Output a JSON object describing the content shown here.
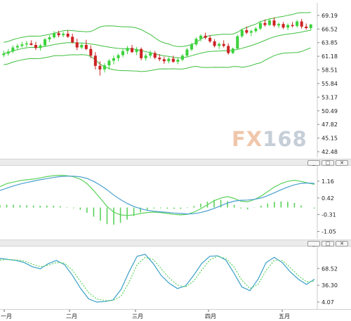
{
  "watermark": {
    "brand_a": "FX",
    "brand_b": "168"
  },
  "window_buttons": {
    "minimize": "_",
    "restore": "□",
    "close": "✕"
  },
  "colors": {
    "up": "#3cd23c",
    "down": "#cc2222",
    "band": "#3fbf3f",
    "macd_line": "#4a9fd0",
    "signal_line": "#5ad25a",
    "hist": "#5ad25a",
    "k_line": "#3a9fc8",
    "d_line": "#5ad25a"
  },
  "x_axis": {
    "labels": [
      "一月",
      "二月",
      "三月",
      "四月",
      "五月"
    ]
  },
  "chart_data": [
    {
      "type": "candlestick",
      "yticks": [
        "69.19",
        "66.52",
        "63.85",
        "61.18",
        "58.51",
        "55.84",
        "53.17",
        "50.49",
        "47.82",
        "45.15",
        "42.48"
      ],
      "ylim": [
        42.48,
        70.0
      ],
      "ohlc": [
        [
          61.4,
          62.3,
          61.0,
          61.7
        ],
        [
          61.7,
          62.6,
          61.3,
          62.1
        ],
        [
          62.1,
          63.3,
          61.8,
          62.9
        ],
        [
          62.9,
          63.6,
          62.4,
          63.2
        ],
        [
          63.2,
          64.0,
          62.9,
          63.5
        ],
        [
          63.5,
          64.2,
          63.0,
          63.7
        ],
        [
          63.7,
          64.3,
          63.3,
          63.4
        ],
        [
          63.4,
          64.0,
          62.4,
          62.8
        ],
        [
          62.8,
          63.6,
          62.3,
          63.3
        ],
        [
          63.3,
          64.8,
          63.0,
          64.5
        ],
        [
          64.5,
          65.3,
          64.0,
          64.9
        ],
        [
          64.9,
          66.1,
          64.6,
          65.7
        ],
        [
          65.7,
          66.2,
          64.9,
          65.3
        ],
        [
          65.3,
          66.0,
          64.9,
          65.6
        ],
        [
          65.6,
          66.2,
          64.8,
          65.0
        ],
        [
          65.0,
          65.6,
          63.7,
          63.9
        ],
        [
          63.9,
          64.6,
          62.4,
          62.9
        ],
        [
          62.9,
          63.7,
          62.6,
          63.4
        ],
        [
          63.4,
          64.4,
          62.4,
          62.6
        ],
        [
          62.6,
          63.3,
          60.8,
          61.3
        ],
        [
          61.3,
          62.0,
          58.6,
          59.3
        ],
        [
          59.3,
          60.2,
          57.4,
          58.6
        ],
        [
          58.6,
          59.8,
          58.0,
          59.4
        ],
        [
          59.4,
          60.6,
          58.6,
          60.3
        ],
        [
          60.3,
          61.3,
          59.6,
          60.8
        ],
        [
          60.8,
          61.7,
          60.2,
          61.4
        ],
        [
          61.4,
          62.6,
          61.0,
          62.2
        ],
        [
          62.2,
          63.2,
          61.6,
          62.8
        ],
        [
          62.8,
          63.4,
          61.8,
          62.0
        ],
        [
          62.0,
          63.0,
          61.4,
          62.6
        ],
        [
          62.6,
          62.9,
          60.4,
          60.8
        ],
        [
          60.8,
          61.7,
          60.3,
          61.3
        ],
        [
          61.3,
          62.3,
          60.8,
          61.8
        ],
        [
          61.8,
          62.2,
          60.6,
          60.9
        ],
        [
          60.9,
          61.6,
          60.2,
          60.6
        ],
        [
          60.6,
          61.1,
          59.7,
          60.2
        ],
        [
          60.2,
          61.0,
          59.8,
          60.7
        ],
        [
          60.7,
          61.3,
          59.9,
          60.1
        ],
        [
          60.1,
          60.9,
          59.6,
          60.5
        ],
        [
          60.5,
          61.6,
          60.2,
          61.3
        ],
        [
          61.3,
          62.8,
          61.0,
          62.5
        ],
        [
          62.5,
          63.8,
          62.2,
          63.5
        ],
        [
          63.5,
          64.9,
          63.2,
          64.6
        ],
        [
          64.6,
          65.5,
          64.1,
          65.2
        ],
        [
          65.2,
          65.8,
          64.5,
          64.8
        ],
        [
          64.8,
          65.3,
          63.8,
          64.1
        ],
        [
          64.1,
          64.5,
          62.9,
          63.2
        ],
        [
          63.2,
          63.9,
          62.6,
          63.6
        ],
        [
          63.6,
          64.3,
          62.9,
          63.2
        ],
        [
          63.2,
          63.7,
          61.5,
          61.8
        ],
        [
          61.8,
          62.9,
          61.6,
          62.7
        ],
        [
          62.7,
          65.4,
          62.5,
          65.1
        ],
        [
          65.1,
          66.6,
          64.8,
          66.3
        ],
        [
          66.3,
          67.0,
          65.5,
          65.8
        ],
        [
          65.8,
          66.4,
          65.1,
          66.1
        ],
        [
          66.1,
          66.9,
          65.8,
          66.6
        ],
        [
          66.6,
          68.0,
          66.3,
          67.7
        ],
        [
          67.7,
          68.4,
          67.0,
          67.3
        ],
        [
          67.3,
          68.6,
          67.1,
          68.2
        ],
        [
          68.2,
          68.8,
          66.9,
          67.2
        ],
        [
          67.2,
          67.8,
          66.7,
          67.5
        ],
        [
          67.5,
          67.9,
          66.5,
          66.8
        ],
        [
          66.8,
          67.6,
          66.3,
          67.3
        ],
        [
          67.3,
          67.9,
          66.8,
          67.1
        ],
        [
          67.1,
          68.3,
          66.8,
          68.0
        ],
        [
          68.0,
          68.5,
          66.6,
          67.0
        ],
        [
          67.0,
          67.6,
          66.4,
          66.7
        ],
        [
          66.7,
          67.5,
          66.2,
          67.4
        ]
      ]
    },
    {
      "type": "line",
      "yticks": [
        "1.16",
        "0.42",
        "-0.31",
        "-1.05"
      ],
      "ylim": [
        -1.25,
        1.65
      ],
      "series": [
        {
          "values": [
            0.92,
            1.05,
            1.12,
            1.18,
            1.22,
            1.25,
            1.3,
            1.36,
            1.4,
            1.42,
            1.4,
            1.35,
            1.25,
            1.05,
            0.75,
            0.4,
            0.05,
            -0.2,
            -0.32,
            -0.35,
            -0.32,
            -0.26,
            -0.22,
            -0.2,
            -0.22,
            -0.26,
            -0.3,
            -0.32,
            -0.3,
            -0.2,
            -0.05,
            0.12,
            0.3,
            0.42,
            0.48,
            0.4,
            0.28,
            0.25,
            0.35,
            0.5,
            0.7,
            0.9,
            1.05,
            1.15,
            1.2,
            1.15,
            1.08,
            1.02
          ]
        },
        {
          "values": [
            0.75,
            0.85,
            0.95,
            1.03,
            1.1,
            1.16,
            1.22,
            1.27,
            1.32,
            1.36,
            1.38,
            1.38,
            1.35,
            1.28,
            1.15,
            0.98,
            0.78,
            0.55,
            0.35,
            0.18,
            0.05,
            -0.05,
            -0.12,
            -0.16,
            -0.19,
            -0.21,
            -0.24,
            -0.26,
            -0.28,
            -0.27,
            -0.22,
            -0.14,
            -0.04,
            0.08,
            0.2,
            0.28,
            0.32,
            0.33,
            0.36,
            0.42,
            0.52,
            0.65,
            0.78,
            0.9,
            1.0,
            1.06,
            1.08,
            1.06
          ]
        }
      ],
      "histogram": [
        0.1,
        0.13,
        0.12,
        0.1,
        0.1,
        0.09,
        0.08,
        0.09,
        0.08,
        0.06,
        0.02,
        -0.03,
        -0.1,
        -0.23,
        -0.4,
        -0.58,
        -0.73,
        -0.75,
        -0.67,
        -0.53,
        -0.37,
        -0.21,
        -0.1,
        -0.04,
        -0.03,
        -0.05,
        -0.06,
        -0.06,
        -0.02,
        0.07,
        0.17,
        0.26,
        0.34,
        0.34,
        0.28,
        0.12,
        -0.04,
        -0.08,
        -0.01,
        0.08,
        0.18,
        0.25,
        0.27,
        0.25,
        0.2,
        0.09,
        0.0,
        -0.04
      ]
    },
    {
      "type": "line",
      "yticks": [
        "68.52",
        "36.30",
        "4.07"
      ],
      "ylim": [
        0,
        100
      ],
      "series": [
        {
          "values": [
            88,
            86,
            84,
            80,
            72,
            68,
            78,
            84,
            76,
            55,
            30,
            10,
            4,
            5,
            8,
            28,
            62,
            92,
            96,
            78,
            55,
            40,
            30,
            35,
            55,
            78,
            92,
            93,
            85,
            60,
            33,
            26,
            48,
            80,
            90,
            80,
            62,
            48,
            38,
            48
          ]
        },
        {
          "values": [
            85,
            86,
            85,
            83,
            77,
            72,
            75,
            80,
            79,
            65,
            43,
            22,
            10,
            7,
            7,
            15,
            42,
            76,
            90,
            86,
            68,
            50,
            37,
            33,
            44,
            65,
            85,
            92,
            88,
            72,
            46,
            30,
            38,
            65,
            84,
            84,
            70,
            55,
            43,
            44
          ]
        }
      ]
    }
  ]
}
